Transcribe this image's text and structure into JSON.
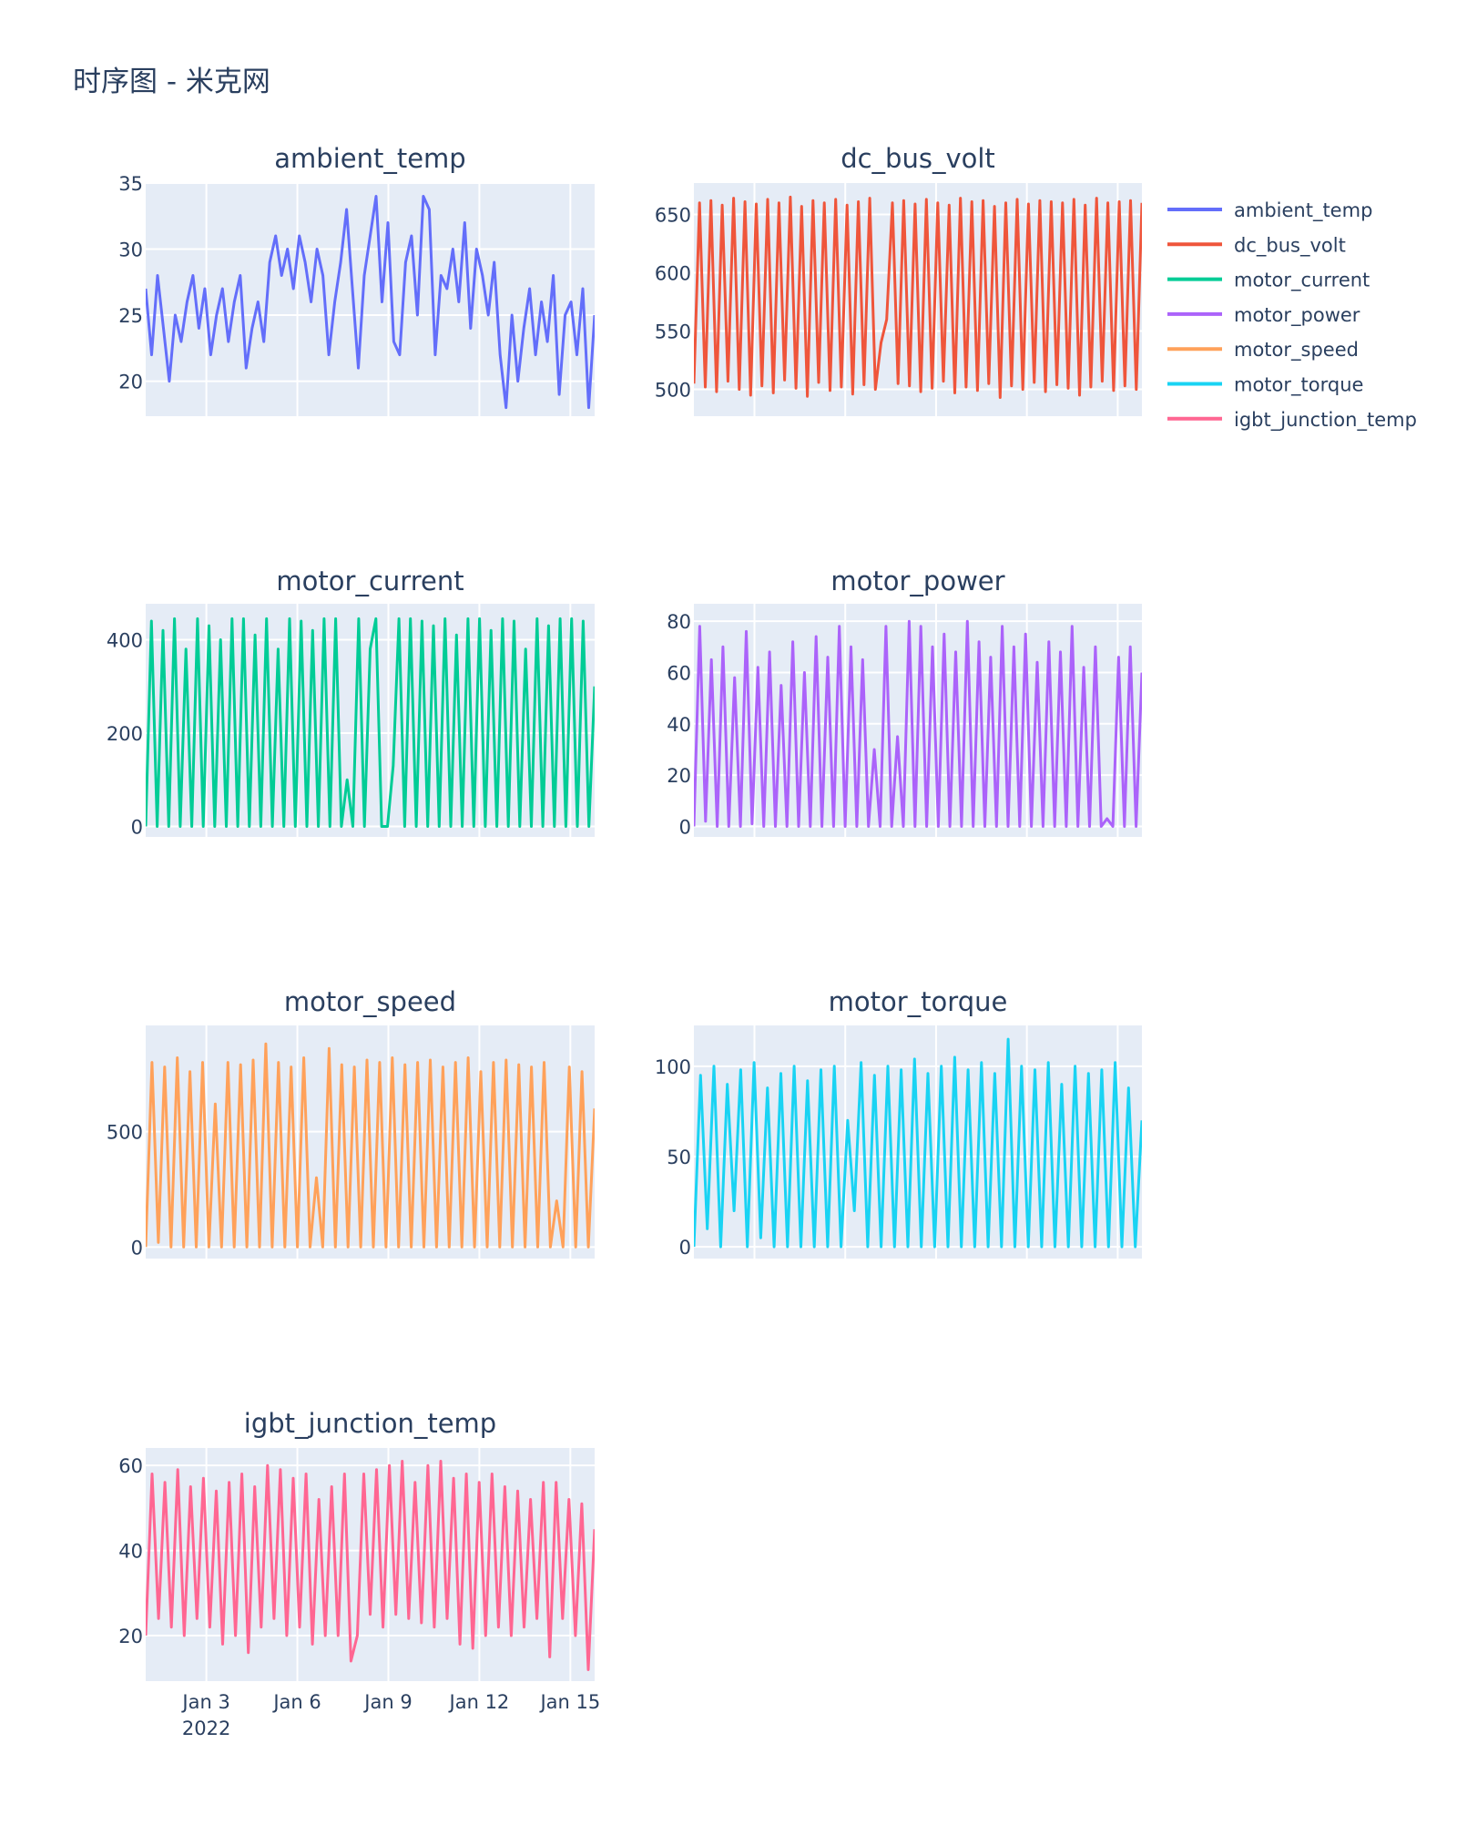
{
  "chart_data": {
    "type": "line",
    "title": "时序图 - 米克网",
    "x_axis": {
      "start": "2022-01-01",
      "end": "2022-01-15 19:00",
      "ticks": [
        "Jan 3",
        "Jan 6",
        "Jan 9",
        "Jan 12",
        "Jan 15"
      ],
      "tick_days": [
        2,
        5,
        8,
        11,
        14
      ],
      "year_label": "2022",
      "span_days": 14.8
    },
    "grid": true,
    "legend_position": "top-right",
    "series": [
      {
        "name": "ambient_temp",
        "color": "#636EFA",
        "ylim": [
          17.35,
          35
        ],
        "yticks": [
          20,
          25,
          30,
          35
        ],
        "values": [
          27,
          22,
          28,
          24,
          20,
          25,
          23,
          26,
          28,
          24,
          27,
          22,
          25,
          27,
          23,
          26,
          28,
          21,
          24,
          26,
          23,
          29,
          31,
          28,
          30,
          27,
          31,
          29,
          26,
          30,
          28,
          22,
          26,
          29,
          33,
          27,
          21,
          28,
          31,
          34,
          26,
          32,
          23,
          22,
          29,
          31,
          25,
          34,
          33,
          22,
          28,
          27,
          30,
          26,
          32,
          24,
          30,
          28,
          25,
          29,
          22,
          18,
          25,
          20,
          24,
          27,
          22,
          26,
          23,
          28,
          19,
          25,
          26,
          22,
          27,
          18,
          25
        ]
      },
      {
        "name": "dc_bus_volt",
        "color": "#EF553B",
        "ylim": [
          477,
          677
        ],
        "yticks": [
          500,
          550,
          600,
          650
        ],
        "values": [
          505,
          660,
          502,
          662,
          498,
          658,
          507,
          664,
          500,
          661,
          495,
          659,
          503,
          663,
          497,
          660,
          508,
          665,
          501,
          657,
          494,
          662,
          506,
          660,
          499,
          663,
          502,
          658,
          496,
          661,
          504,
          664,
          500,
          540,
          560,
          660,
          505,
          662,
          503,
          659,
          498,
          663,
          501,
          660,
          507,
          658,
          497,
          664,
          502,
          661,
          499,
          662,
          505,
          657,
          493,
          660,
          503,
          663,
          500,
          659,
          506,
          662,
          498,
          661,
          504,
          660,
          501,
          663,
          495,
          658,
          502,
          664,
          507,
          660,
          499,
          661,
          503,
          662,
          500,
          660
        ]
      },
      {
        "name": "motor_current",
        "color": "#00CC96",
        "ylim": [
          -22.5,
          477
        ],
        "yticks": [
          0,
          200,
          400
        ],
        "values": [
          0,
          440,
          0,
          420,
          0,
          445,
          0,
          380,
          0,
          445,
          0,
          430,
          0,
          400,
          0,
          445,
          0,
          445,
          0,
          410,
          0,
          445,
          0,
          380,
          0,
          445,
          0,
          440,
          0,
          420,
          0,
          445,
          0,
          445,
          0,
          100,
          0,
          445,
          0,
          380,
          445,
          0,
          0,
          130,
          445,
          0,
          445,
          0,
          440,
          0,
          430,
          0,
          445,
          0,
          410,
          0,
          445,
          0,
          445,
          0,
          420,
          0,
          445,
          0,
          440,
          0,
          380,
          0,
          445,
          0,
          430,
          0,
          445,
          0,
          445,
          0,
          440,
          0,
          300
        ]
      },
      {
        "name": "motor_power",
        "color": "#AB63FA",
        "ylim": [
          -4.1,
          86.8
        ],
        "yticks": [
          0,
          20,
          40,
          60,
          80
        ],
        "values": [
          0,
          78,
          2,
          65,
          0,
          70,
          0,
          58,
          0,
          76,
          1,
          62,
          0,
          68,
          0,
          55,
          0,
          72,
          0,
          60,
          0,
          74,
          0,
          66,
          0,
          78,
          0,
          70,
          0,
          65,
          0,
          30,
          0,
          78,
          0,
          35,
          0,
          80,
          0,
          78,
          0,
          70,
          0,
          75,
          0,
          68,
          0,
          80,
          0,
          72,
          0,
          66,
          0,
          78,
          0,
          70,
          0,
          75,
          0,
          64,
          0,
          72,
          0,
          68,
          0,
          78,
          0,
          62,
          0,
          70,
          0,
          3,
          0,
          66,
          0,
          70,
          0,
          60
        ]
      },
      {
        "name": "motor_speed",
        "color": "#FFA15A",
        "ylim": [
          -50,
          960
        ],
        "yticks": [
          0,
          500
        ],
        "values": [
          0,
          800,
          20,
          780,
          0,
          820,
          0,
          760,
          0,
          800,
          0,
          620,
          0,
          800,
          0,
          790,
          0,
          810,
          0,
          880,
          0,
          800,
          0,
          780,
          0,
          820,
          0,
          300,
          0,
          860,
          0,
          790,
          0,
          780,
          0,
          810,
          0,
          800,
          0,
          820,
          0,
          790,
          0,
          800,
          0,
          810,
          0,
          780,
          0,
          800,
          0,
          820,
          0,
          760,
          0,
          800,
          0,
          810,
          0,
          790,
          0,
          780,
          0,
          800,
          0,
          200,
          0,
          780,
          0,
          760,
          0,
          600
        ]
      },
      {
        "name": "motor_torque",
        "color": "#19D3F3",
        "ylim": [
          -6.5,
          122.6
        ],
        "yticks": [
          0,
          50,
          100
        ],
        "values": [
          0,
          95,
          10,
          100,
          0,
          90,
          20,
          98,
          0,
          102,
          5,
          88,
          0,
          96,
          0,
          100,
          0,
          92,
          0,
          98,
          0,
          100,
          0,
          70,
          20,
          102,
          0,
          95,
          0,
          100,
          0,
          98,
          0,
          104,
          0,
          96,
          0,
          100,
          0,
          105,
          0,
          98,
          0,
          102,
          0,
          96,
          0,
          115,
          0,
          100,
          0,
          98,
          0,
          102,
          0,
          90,
          0,
          100,
          0,
          96,
          0,
          98,
          0,
          102,
          0,
          88,
          0,
          70
        ]
      },
      {
        "name": "igbt_junction_temp",
        "color": "#FF6692",
        "ylim": [
          9.3,
          64.1
        ],
        "yticks": [
          20,
          40,
          60
        ],
        "values": [
          20,
          58,
          24,
          56,
          22,
          59,
          20,
          55,
          24,
          57,
          22,
          54,
          18,
          56,
          20,
          58,
          16,
          55,
          22,
          60,
          24,
          59,
          20,
          57,
          22,
          58,
          18,
          52,
          20,
          55,
          20,
          58,
          14,
          20,
          58,
          25,
          59,
          22,
          60,
          25,
          61,
          24,
          56,
          23,
          60,
          22,
          61,
          24,
          57,
          18,
          58,
          17,
          56,
          20,
          58,
          22,
          55,
          20,
          54,
          22,
          52,
          24,
          56,
          15,
          56,
          24,
          52,
          20,
          51,
          12,
          45
        ]
      }
    ]
  }
}
